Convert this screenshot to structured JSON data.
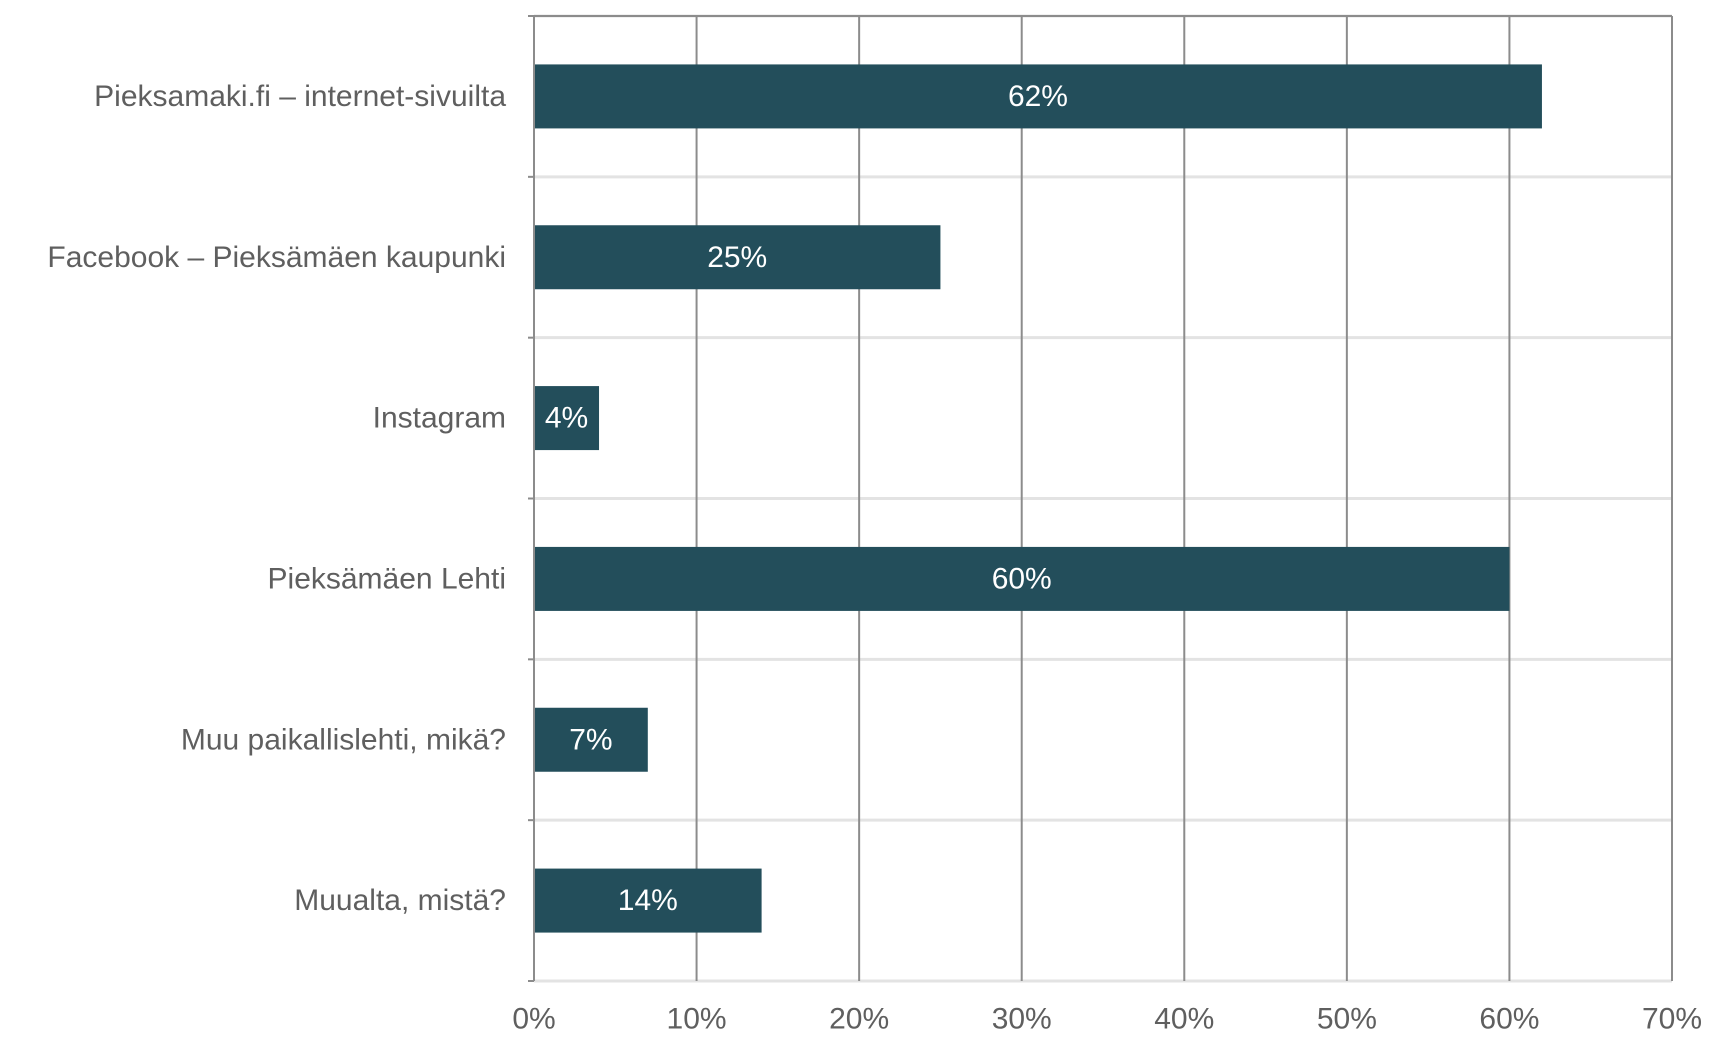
{
  "chart_data": {
    "type": "bar",
    "orientation": "horizontal",
    "categories": [
      "Pieksamaki.fi – internet-sivuilta",
      "Facebook – Pieksämäen kaupunki",
      "Instagram",
      "Pieksämäen Lehti",
      "Muu paikallislehti, mikä?",
      "Muualta, mistä?"
    ],
    "values": [
      62,
      25,
      4,
      60,
      7,
      14
    ],
    "data_labels": [
      "62%",
      "25%",
      "4%",
      "60%",
      "7%",
      "14%"
    ],
    "xlim": [
      0,
      70
    ],
    "x_ticks": [
      0,
      10,
      20,
      30,
      40,
      50,
      60,
      70
    ],
    "x_tick_labels": [
      "0%",
      "10%",
      "20%",
      "30%",
      "40%",
      "50%",
      "60%",
      "70%"
    ],
    "title": "",
    "xlabel": "",
    "ylabel": "",
    "grid": true,
    "legend": "none",
    "colors": {
      "bar": "#234e5b",
      "vertical_grid": "#8c8c8c",
      "horizontal_grid": "#e3e3e3",
      "axis": "#8c8c8c",
      "label_text": "#5f5f5f",
      "data_label_text": "#ffffff"
    }
  }
}
